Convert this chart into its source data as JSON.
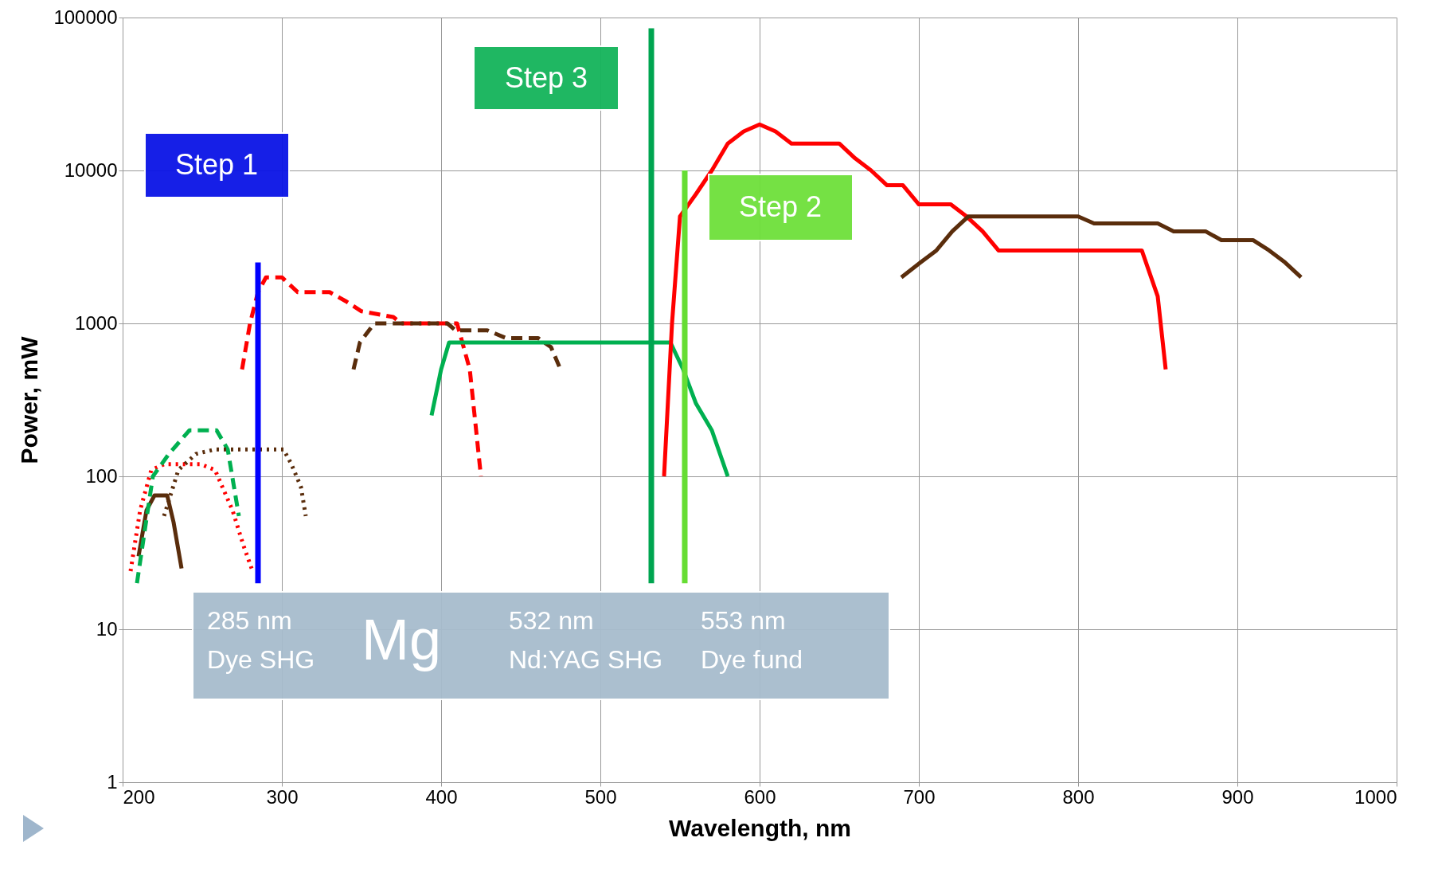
{
  "chart_data": {
    "type": "line",
    "xlabel": "Wavelength, nm",
    "ylabel": "Power, mW",
    "xlim": [
      200,
      1000
    ],
    "xticks": [
      200,
      300,
      400,
      500,
      600,
      700,
      800,
      900,
      1000
    ],
    "ylim": [
      1,
      100000
    ],
    "yticks": [
      1,
      10,
      100,
      1000,
      10000,
      100000
    ],
    "log": "y",
    "grid": true,
    "series": [
      {
        "color": "#5a2d0c",
        "line_style": "solid",
        "x": [
          210,
          215,
          220,
          228,
          232,
          237
        ],
        "values": [
          30,
          60,
          75,
          75,
          50,
          25
        ]
      },
      {
        "color": "#ff0000",
        "line_style": "dotted",
        "x": [
          205,
          211,
          218,
          226,
          249,
          258,
          269,
          276,
          281
        ],
        "values": [
          24,
          60,
          110,
          120,
          120,
          110,
          60,
          35,
          25
        ]
      },
      {
        "color": "#00b050",
        "line_style": "dashed",
        "x": [
          209,
          214,
          219,
          229,
          242,
          259,
          266,
          273
        ],
        "values": [
          20,
          45,
          100,
          140,
          200,
          200,
          150,
          55
        ]
      },
      {
        "color": "#5a2d0c",
        "line_style": "dotted",
        "x": [
          226,
          235,
          246,
          258,
          301,
          306,
          312,
          315
        ],
        "values": [
          55,
          110,
          140,
          150,
          150,
          120,
          85,
          55
        ]
      },
      {
        "color": "#ff0000",
        "line_style": "dashed",
        "x": [
          275,
          280,
          285,
          290,
          300,
          310,
          330,
          340,
          350,
          370,
          375,
          410,
          418,
          425
        ],
        "values": [
          500,
          1000,
          1600,
          2000,
          2000,
          1600,
          1600,
          1400,
          1200,
          1100,
          1000,
          1000,
          500,
          100
        ]
      },
      {
        "color": "#5a2d0c",
        "line_style": "dashed",
        "x": [
          345,
          349,
          358,
          404,
          409,
          429,
          441,
          461,
          469,
          475
        ],
        "values": [
          500,
          750,
          1000,
          1000,
          900,
          900,
          800,
          800,
          700,
          500
        ]
      },
      {
        "color": "#00b050",
        "line_style": "solid",
        "x": [
          394,
          400,
          405,
          544,
          552,
          560,
          570,
          580
        ],
        "values": [
          250,
          500,
          750,
          750,
          500,
          300,
          200,
          100
        ]
      },
      {
        "color": "#ff0000",
        "line_style": "solid",
        "x": [
          540,
          545,
          550,
          560,
          570,
          580,
          590,
          600,
          610,
          620,
          650,
          660,
          670,
          680,
          690,
          700,
          720,
          730,
          740,
          750,
          840,
          850,
          855
        ],
        "values": [
          100,
          1000,
          5000,
          7000,
          10000,
          15000,
          18000,
          20000,
          18000,
          15000,
          15000,
          12000,
          10000,
          8000,
          8000,
          6000,
          6000,
          5000,
          4000,
          3000,
          3000,
          1500,
          500
        ]
      },
      {
        "color": "#5a2d0c",
        "line_style": "solid",
        "x": [
          689,
          701,
          711,
          721,
          731,
          800,
          810,
          850,
          860,
          880,
          890,
          910,
          920,
          930,
          940
        ],
        "values": [
          2000,
          2500,
          3000,
          4000,
          5000,
          5000,
          4500,
          4500,
          4000,
          4000,
          3500,
          3500,
          3000,
          2500,
          2000
        ]
      },
      {
        "color": "#0000ff",
        "line_style": "solid",
        "x": [
          285,
          285
        ],
        "values": [
          20,
          2500
        ]
      },
      {
        "color": "#00a550",
        "line_style": "solid",
        "x": [
          532,
          532
        ],
        "values": [
          20,
          85000
        ]
      },
      {
        "color": "#66dd33",
        "line_style": "solid",
        "x": [
          553,
          553
        ],
        "values": [
          20,
          10000
        ]
      }
    ],
    "annotations": [
      "Step 1",
      "Step 2",
      "Step 3",
      "285 nm",
      "Dye SHG",
      "Mg",
      "532 nm",
      "Nd:YAG SHG",
      "553 nm",
      "Dye fund"
    ]
  }
}
